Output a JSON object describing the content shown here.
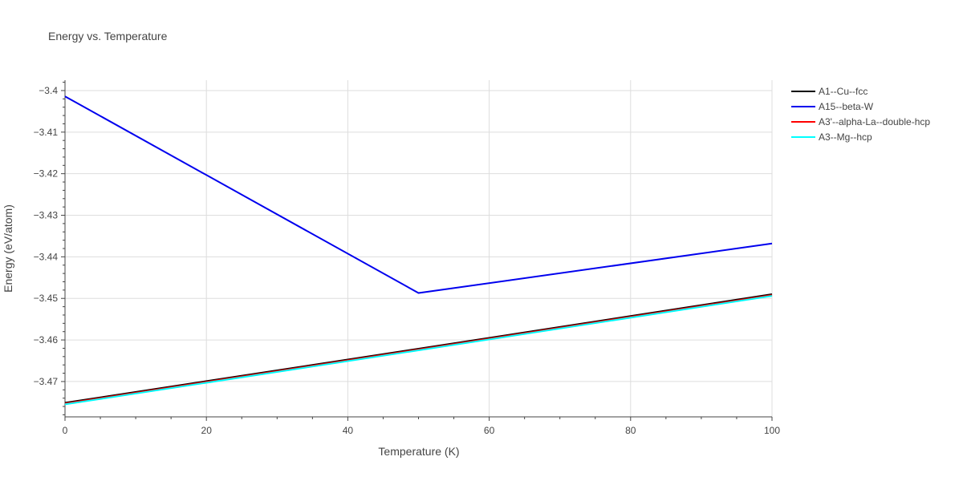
{
  "chart_data": {
    "type": "line",
    "title": "Energy vs. Temperature",
    "xlabel": "Temperature (K)",
    "ylabel": "Energy (eV/atom)",
    "xlim": [
      0,
      100
    ],
    "ylim": [
      -3.4785,
      -3.3975
    ],
    "x_ticks": [
      0,
      20,
      40,
      60,
      80,
      100
    ],
    "x_tick_labels": [
      "0",
      "20",
      "40",
      "60",
      "80",
      "100"
    ],
    "y_ticks": [
      -3.47,
      -3.46,
      -3.45,
      -3.44,
      -3.43,
      -3.42,
      -3.41,
      -3.4
    ],
    "y_tick_labels": [
      "−3.47",
      "−3.46",
      "−3.45",
      "−3.44",
      "−3.43",
      "−3.42",
      "−3.41",
      "−3.4"
    ],
    "grid": true,
    "legend_position": "top-right",
    "series": [
      {
        "name": "A1--Cu--fcc",
        "color": "#000000",
        "x": [
          0,
          50,
          100
        ],
        "y": [
          -3.4751,
          -3.4621,
          -3.449
        ]
      },
      {
        "name": "A15--beta-W",
        "color": "#0000ee",
        "x": [
          0,
          50,
          100
        ],
        "y": [
          -3.4014,
          -3.4487,
          -3.4368
        ]
      },
      {
        "name": "A3'--alpha-La--double-hcp",
        "color": "#ff0000",
        "x": [
          0,
          50,
          100
        ],
        "y": [
          -3.4753,
          -3.4623,
          -3.4492
        ]
      },
      {
        "name": "A3--Mg--hcp",
        "color": "#00ffff",
        "x": [
          0,
          50,
          100
        ],
        "y": [
          -3.4755,
          -3.4625,
          -3.4494
        ]
      }
    ]
  }
}
